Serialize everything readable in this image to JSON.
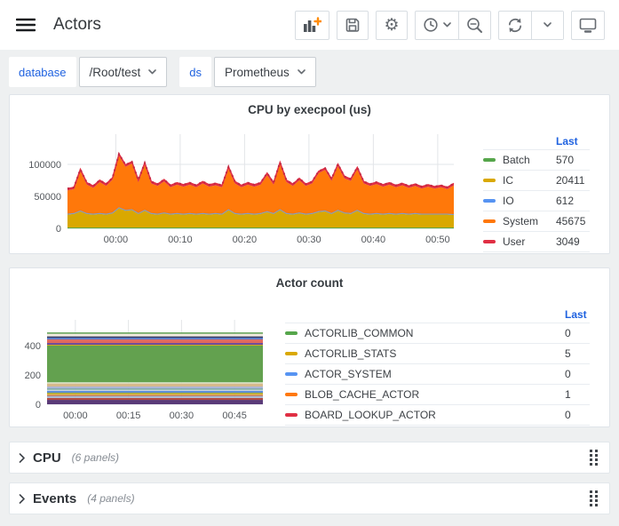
{
  "colors": {
    "page_bg": "#eef0f1",
    "header_bg": "#ffffff",
    "panel_bg": "#ffffff",
    "panel_border": "#dfe4e9",
    "link_blue": "#1f62e0",
    "text_primary": "#36393d",
    "text_secondary": "#878d94",
    "axis_text": "#54585d",
    "grid_line": "#e2e5e8",
    "toolbar_icon": "#676c72",
    "add_plus_orange": "#ff8c0a"
  },
  "header": {
    "title": "Actors",
    "toolbar_buttons": [
      {
        "name": "add-panel-button",
        "icon": "bar-chart-plus-icon"
      },
      {
        "name": "save-dashboard-button",
        "icon": "save-icon"
      },
      {
        "name": "dashboard-settings-button",
        "icon": "gear-icon"
      },
      {
        "name": "time-range-button",
        "icon": "clock-icon"
      },
      {
        "name": "zoom-out-time-button",
        "icon": "zoom-out-icon"
      },
      {
        "name": "refresh-button",
        "icon": "refresh-icon"
      },
      {
        "name": "refresh-interval-button",
        "icon": "chevron-down-icon"
      },
      {
        "name": "view-mode-button",
        "icon": "monitor-icon"
      }
    ]
  },
  "variables": {
    "database": {
      "label": "database",
      "value": "/Root/test"
    },
    "ds": {
      "label": "ds",
      "value": "Prometheus"
    }
  },
  "rows": [
    {
      "title": "CPU",
      "note": "(6 panels)"
    },
    {
      "title": "Events",
      "note": "(4 panels)"
    }
  ],
  "chart_data": [
    {
      "type": "area",
      "stacked": true,
      "title": "CPU by execpool (us)",
      "legend_last_label": "Last",
      "legend_position": "right",
      "grid": true,
      "ylim": [
        0,
        150000
      ],
      "yticks": [
        0,
        50000,
        100000
      ],
      "x_start_min": -7.5,
      "x_step_min": 1,
      "points": 61,
      "xticks": [
        {
          "min": 0,
          "label": "00:00"
        },
        {
          "min": 10,
          "label": "00:10"
        },
        {
          "min": 20,
          "label": "00:20"
        },
        {
          "min": 30,
          "label": "00:30"
        },
        {
          "min": 40,
          "label": "00:40"
        },
        {
          "min": 50,
          "label": "00:50"
        }
      ],
      "series": [
        {
          "name": "Batch",
          "color": "#56A64B",
          "last": 570,
          "constant": 570
        },
        {
          "name": "IC",
          "color": "#D9A800",
          "last": 20411,
          "values": [
            21000,
            22000,
            26000,
            22000,
            21000,
            22000,
            21000,
            23000,
            31000,
            27000,
            28000,
            22000,
            27000,
            22000,
            21000,
            23000,
            21000,
            22000,
            21000,
            22000,
            21000,
            22000,
            21000,
            22000,
            21000,
            28000,
            22000,
            21000,
            22000,
            21000,
            22000,
            25000,
            22000,
            28000,
            22000,
            21000,
            23000,
            21000,
            22000,
            25000,
            26000,
            22000,
            27000,
            23000,
            22000,
            27000,
            22000,
            21000,
            22000,
            21000,
            22000,
            21000,
            22000,
            21000,
            22000,
            21000,
            21000,
            21000,
            21000,
            21000,
            20411
          ]
        },
        {
          "name": "IO",
          "color": "#5794F2",
          "last": 612,
          "constant": 612
        },
        {
          "name": "System",
          "color": "#FF780A",
          "last": 45675,
          "values": [
            37000,
            38000,
            62000,
            45000,
            41000,
            49000,
            44000,
            52000,
            81000,
            68000,
            72000,
            49000,
            71000,
            47000,
            44000,
            49000,
            42000,
            45000,
            43000,
            45000,
            42000,
            47000,
            43000,
            44000,
            42000,
            64000,
            47000,
            42000,
            45000,
            43000,
            45000,
            57000,
            45000,
            71000,
            49000,
            44000,
            51000,
            44000,
            47000,
            60000,
            64000,
            51000,
            69000,
            54000,
            51000,
            64000,
            47000,
            44000,
            46000,
            43000,
            45000,
            42000,
            44000,
            41000,
            43000,
            40000,
            43000,
            40000,
            42000,
            39000,
            45675
          ]
        },
        {
          "name": "User",
          "color": "#E02F44",
          "last": 3049,
          "constant": 3049
        }
      ]
    },
    {
      "type": "area",
      "stacked": true,
      "title": "Actor count",
      "legend_last_label": "Last",
      "legend_position": "right",
      "grid": true,
      "ylim": [
        0,
        600
      ],
      "yticks": [
        0,
        200,
        400
      ],
      "x_range_min": [
        -8,
        53
      ],
      "xticks": [
        {
          "min": 0,
          "label": "00:00"
        },
        {
          "min": 15,
          "label": "00:15"
        },
        {
          "min": 30,
          "label": "00:30"
        },
        {
          "min": 45,
          "label": "00:45"
        }
      ],
      "series": [
        {
          "name": "ACTORLIB_COMMON",
          "color": "#56A64B",
          "last": 0
        },
        {
          "name": "ACTORLIB_STATS",
          "color": "#D9A800",
          "last": 5
        },
        {
          "name": "ACTOR_SYSTEM",
          "color": "#5794F2",
          "last": 0
        },
        {
          "name": "BLOB_CACHE_ACTOR",
          "color": "#FF780A",
          "last": 1
        },
        {
          "name": "BOARD_LOOKUP_ACTOR",
          "color": "#E02F44",
          "last": 0
        }
      ],
      "stack_total_estimate": 490,
      "stack_bands": [
        [
          "#5a3a78",
          30
        ],
        [
          "#b04a42",
          14
        ],
        [
          "#a9c6e8",
          7
        ],
        [
          "#98a0b5",
          7
        ],
        [
          "#d9662e",
          7
        ],
        [
          "#d9c23a",
          7
        ],
        [
          "#a0a030",
          7
        ],
        [
          "#5e8fd6",
          14
        ],
        [
          "#e6e6e2",
          7
        ],
        [
          "#53958a",
          7
        ],
        [
          "#aab4d8",
          14
        ],
        [
          "#d6b98c",
          21
        ],
        [
          "#dfe8d0",
          8
        ],
        [
          "#63a14f",
          250
        ],
        [
          "#d4aa20",
          6
        ],
        [
          "#6a4a9c",
          12
        ],
        [
          "#e0695e",
          24
        ],
        [
          "#5578c8",
          12
        ],
        [
          "#2f3660",
          9
        ],
        [
          "#efe9dc",
          18
        ],
        [
          "#5a9e4e",
          9
        ]
      ]
    }
  ]
}
